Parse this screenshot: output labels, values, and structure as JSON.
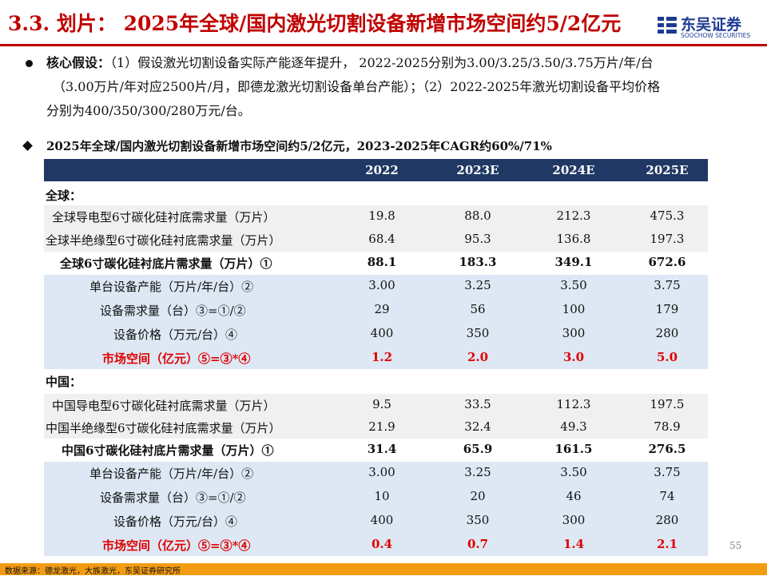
{
  "title": "3.3. 划片： 2025年全球/国内激光切割设备新增市场空间约5/2亿元",
  "logo": {
    "cn": "东吴证券",
    "en": "SOOCHOW SECURITIES",
    "brand_color": "#1f3a93"
  },
  "assumption": {
    "label": "核心假设：",
    "line1": "（1）假设激光切割设备实际产能逐年提升， 2022-2025分别为3.00/3.25/3.50/3.75万片/年/台",
    "line2": "（3.00万片/年对应2500片/月，即德龙激光切割设备单台产能）；（2）2022-2025年激光切割设备平均价格",
    "line3": "分别为400/350/300/280万元/台。"
  },
  "table_heading": "2025年全球/国内激光切割设备新增市场空间约5/2亿元，2023-2025年CAGR约60%/71%",
  "table": {
    "columns": [
      "2022",
      "2023E",
      "2024E",
      "2025E"
    ],
    "sections": [
      {
        "label": "全球：",
        "rows": [
          {
            "label": "全球导电型6寸碳化硅衬底需求量（万片）",
            "values": [
              "19.8",
              "88.0",
              "212.3",
              "475.3"
            ]
          },
          {
            "label": "全球半绝缘型6寸碳化硅衬底需求量（万片）",
            "values": [
              "68.4",
              "95.3",
              "136.8",
              "197.3"
            ]
          },
          {
            "label": "全球6寸碳化硅衬底片需求量（万片）①",
            "values": [
              "88.1",
              "183.3",
              "349.1",
              "672.6"
            ]
          },
          {
            "label": "单台设备产能（万片/年/台）②",
            "values": [
              "3.00",
              "3.25",
              "3.50",
              "3.75"
            ]
          },
          {
            "label": "设备需求量（台）③=①/②",
            "values": [
              "29",
              "56",
              "100",
              "179"
            ]
          },
          {
            "label": "设备价格（万元/台）④",
            "values": [
              "400",
              "350",
              "300",
              "280"
            ]
          },
          {
            "label": "市场空间（亿元）⑤=③*④",
            "values": [
              "1.2",
              "2.0",
              "3.0",
              "5.0"
            ]
          }
        ]
      },
      {
        "label": "中国：",
        "rows": [
          {
            "label": "中国导电型6寸碳化硅衬底需求量（万片）",
            "values": [
              "9.5",
              "33.5",
              "112.3",
              "197.5"
            ]
          },
          {
            "label": "中国半绝缘型6寸碳化硅衬底需求量（万片）",
            "values": [
              "21.9",
              "32.4",
              "49.3",
              "78.9"
            ]
          },
          {
            "label": "中国6寸碳化硅衬底片需求量（万片）①",
            "values": [
              "31.4",
              "65.9",
              "161.5",
              "276.5"
            ]
          },
          {
            "label": "单台设备产能（万片/年/台）②",
            "values": [
              "3.00",
              "3.25",
              "3.50",
              "3.75"
            ]
          },
          {
            "label": "设备需求量（台）③=①/②",
            "values": [
              "10",
              "20",
              "46",
              "74"
            ]
          },
          {
            "label": "设备价格（万元/台）④",
            "values": [
              "400",
              "350",
              "300",
              "280"
            ]
          },
          {
            "label": "市场空间（亿元）⑤=③*④",
            "values": [
              "0.4",
              "0.7",
              "1.4",
              "2.1"
            ]
          }
        ]
      }
    ]
  },
  "page_number": "55",
  "footer_source": "数据来源：德龙激光，大族激光，东吴证券研究所",
  "colors": {
    "title_red": "#c00000",
    "header_navy": "#203864",
    "highlight_red": "#e00000",
    "band_gray": "#f0f0f0",
    "band_blue": "#dde8f4",
    "footer_orange": "#f39c12"
  }
}
